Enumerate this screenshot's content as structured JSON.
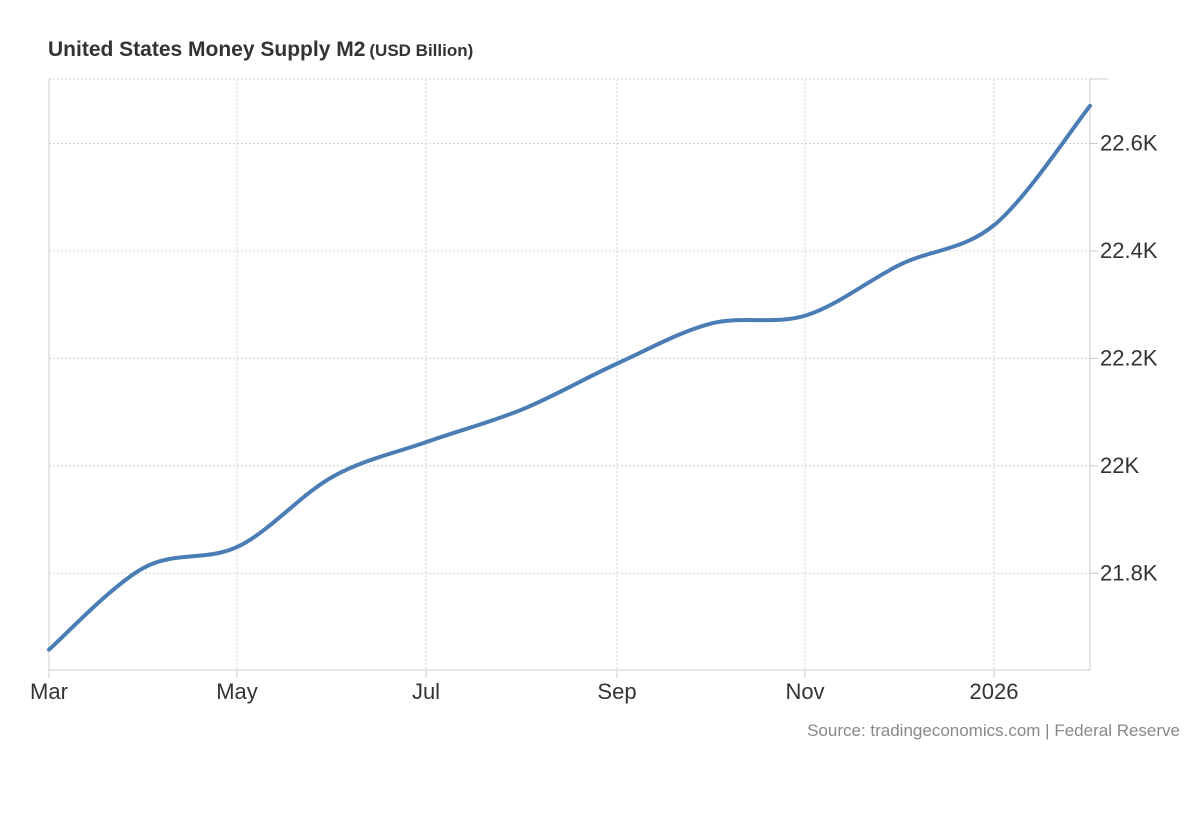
{
  "title": "United States Money Supply M2",
  "unit": "(USD Billion)",
  "source": "Source: tradingeconomics.com | Federal Reserve",
  "colors": {
    "line": "#4a7db5",
    "grid": "#d4d4d4",
    "text": "#333333",
    "source": "#888888"
  },
  "chart_data": {
    "type": "line",
    "title": "United States Money Supply M2",
    "subtitle": "(USD Billion)",
    "x_ticks": [
      "Mar",
      "May",
      "Jul",
      "Sep",
      "Nov",
      "2026"
    ],
    "y_ticks": [
      21800,
      22000,
      22200,
      22400,
      22600
    ],
    "y_tick_labels": [
      "21.8K",
      "22K",
      "22.2K",
      "22.4K",
      "22.6K"
    ],
    "ylim": [
      21620,
      22720
    ],
    "y_axis_side": "right",
    "grid": true,
    "legend": "none",
    "series": [
      {
        "x": [
          "2025-03",
          "2025-04",
          "2025-05",
          "2025-06",
          "2025-07",
          "2025-08",
          "2025-09",
          "2025-10",
          "2025-11",
          "2025-12",
          "2026-01",
          "2026-02"
        ],
        "values": [
          21658,
          21810,
          21850,
          21980,
          22045,
          22105,
          22190,
          22265,
          22280,
          22375,
          22450,
          22670
        ]
      }
    ]
  }
}
